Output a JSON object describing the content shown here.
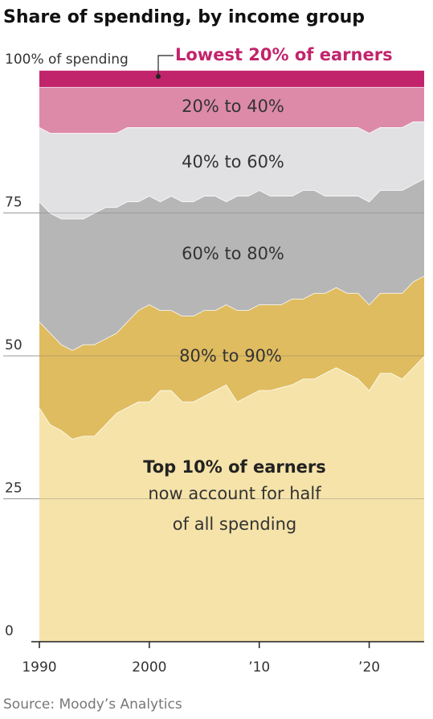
{
  "chart_data": {
    "type": "stacked-area",
    "title": "Share of spending, by income group",
    "source": "Source: Moody’s Analytics",
    "annotation": [
      "now account for half",
      "of all spending"
    ],
    "x": [
      1990,
      1991,
      1992,
      1993,
      1994,
      1995,
      1996,
      1997,
      1998,
      1999,
      2000,
      2001,
      2002,
      2003,
      2004,
      2005,
      2006,
      2007,
      2008,
      2009,
      2010,
      2011,
      2012,
      2013,
      2014,
      2015,
      2016,
      2017,
      2018,
      2019,
      2020,
      2021,
      2022,
      2023,
      2024,
      2025
    ],
    "xlim": [
      1990,
      2025
    ],
    "xticks": [
      1990,
      2000,
      {
        "value": 2010,
        "label": "’10"
      },
      {
        "value": 2020,
        "label": "’20"
      }
    ],
    "ylim": [
      0,
      100
    ],
    "yticks": [
      0,
      25,
      50,
      75,
      {
        "value": 100,
        "label": "100% of spending"
      }
    ],
    "grid": true,
    "series": [
      {
        "name": "Top 10% of earners",
        "color": "#f5e3a9",
        "values": [
          41,
          38,
          37,
          35.5,
          36,
          36,
          38,
          40,
          41,
          42,
          42,
          44,
          44,
          42,
          42,
          43,
          44,
          45,
          42,
          43,
          44,
          44,
          44.5,
          45,
          46,
          46,
          47,
          48,
          47,
          46,
          44,
          47,
          47,
          46,
          48,
          50
        ]
      },
      {
        "name": "80% to 90%",
        "color": "#dfbc60",
        "values": [
          15,
          16,
          15,
          15.5,
          16,
          16,
          15,
          14,
          15,
          16,
          17,
          14,
          14,
          15,
          15,
          15,
          14,
          14,
          16,
          15,
          15,
          15,
          14.5,
          15,
          14,
          15,
          14,
          14,
          14,
          15,
          15,
          14,
          14,
          15,
          15,
          14
        ]
      },
      {
        "name": "60% to 80%",
        "color": "#b6b6b6",
        "values": [
          21,
          21,
          22,
          23,
          22,
          23,
          23,
          22,
          21,
          19,
          19,
          19,
          20,
          20,
          20,
          20,
          20,
          18,
          20,
          20,
          20,
          19,
          19,
          18,
          19,
          18,
          17,
          16,
          17,
          17,
          18,
          18,
          18,
          18,
          17,
          17
        ]
      },
      {
        "name": "40% to 60%",
        "color": "#e1e1e3",
        "values": [
          13,
          14,
          15,
          15,
          15,
          14,
          13,
          13,
          13,
          13,
          12,
          13,
          12,
          13,
          13,
          12,
          12,
          13,
          12,
          12,
          11,
          12,
          12,
          12,
          11,
          11,
          12,
          12,
          12,
          12,
          12,
          11,
          11,
          11,
          11,
          10
        ]
      },
      {
        "name": "20% to 40%",
        "color": "#dd8aa9",
        "values": [
          7,
          8,
          8,
          8,
          8,
          8,
          8,
          8,
          7,
          7,
          7,
          7,
          7,
          7,
          7,
          7,
          7,
          7,
          7,
          7,
          7,
          7,
          7,
          7,
          7,
          7,
          7,
          7,
          7,
          7,
          8,
          7,
          7,
          7,
          6,
          6
        ]
      },
      {
        "name": "Lowest 20% of earners",
        "color": "#c2246c",
        "values": [
          3,
          3,
          3,
          3,
          3,
          3,
          3,
          3,
          3,
          3,
          3,
          3,
          3,
          3,
          3,
          3,
          3,
          3,
          3,
          3,
          3,
          3,
          3,
          3,
          3,
          3,
          3,
          3,
          3,
          3,
          3,
          3,
          3,
          3,
          3,
          3
        ]
      }
    ]
  }
}
